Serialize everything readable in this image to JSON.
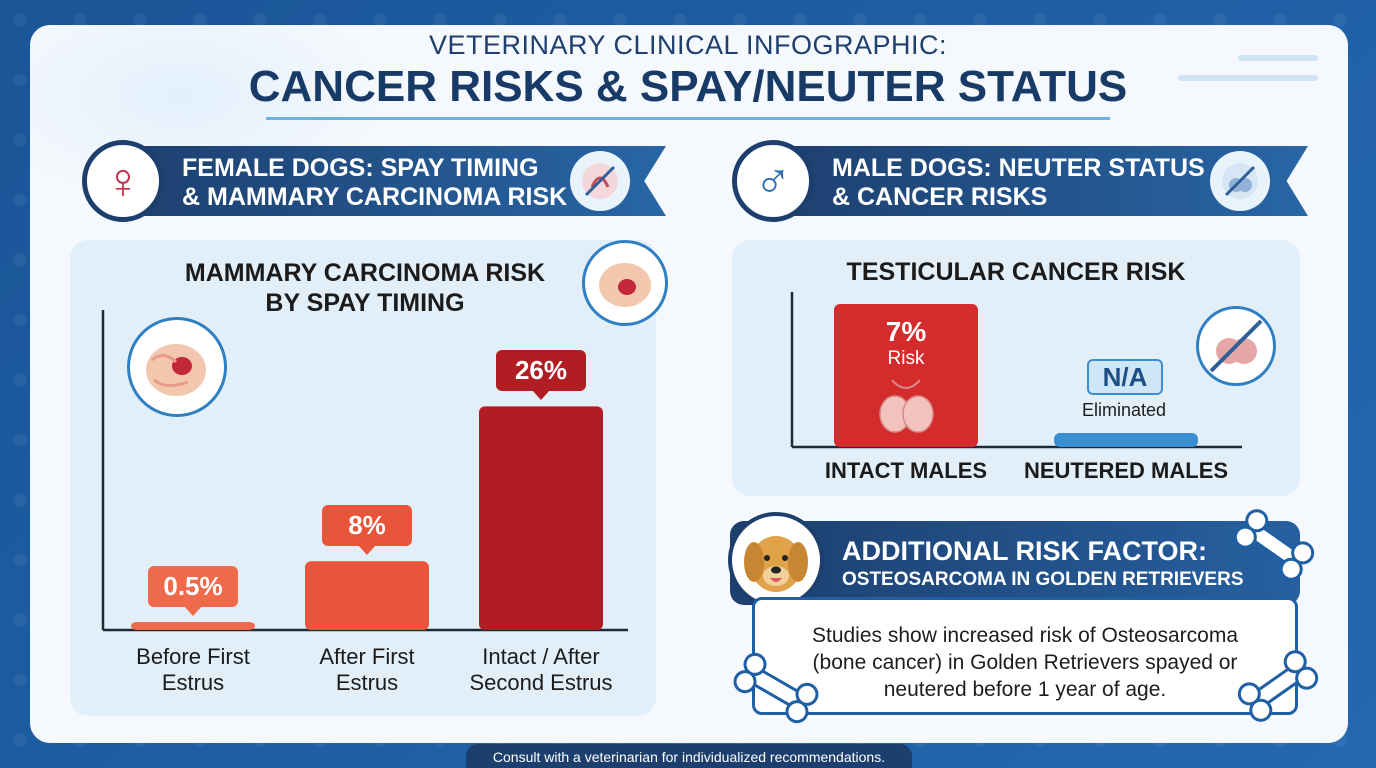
{
  "header": {
    "pre_title": "VETERINARY CLINICAL INFOGRAPHIC:",
    "title": "CANCER RISKS & SPAY/NEUTER STATUS"
  },
  "female_section": {
    "banner_line1": "FEMALE DOGS: SPAY TIMING",
    "banner_line2": "& MAMMARY CARCINOMA RISK",
    "icon": "female-symbol-icon"
  },
  "male_section": {
    "banner_line1": "MALE DOGS: NEUTER STATUS",
    "banner_line2": "& CANCER RISKS",
    "icon": "male-symbol-icon"
  },
  "chart_data": [
    {
      "type": "bar",
      "title_line1": "MAMMARY CARCINOMA RISK",
      "title_line2": "BY SPAY TIMING",
      "categories": [
        {
          "line1": "Before First",
          "line2": "Estrus"
        },
        {
          "line1": "After First",
          "line2": "Estrus"
        },
        {
          "line1": "Intact / After",
          "line2": "Second Estrus"
        }
      ],
      "values": [
        0.5,
        8,
        26
      ],
      "data_labels": [
        "0.5%",
        "8%",
        "26%"
      ],
      "ylim": [
        0,
        30
      ],
      "colors": [
        "#ee6a4a",
        "#e8553b",
        "#b01e24"
      ],
      "label_colors": [
        "#ee6a4a",
        "#e8553b",
        "#b01e24"
      ]
    },
    {
      "type": "bar",
      "title": "TESTICULAR CANCER RISK",
      "categories": [
        "INTACT MALES",
        "NEUTERED MALES"
      ],
      "values": [
        7,
        0
      ],
      "data_labels": [
        "7%",
        "N/A"
      ],
      "sub_labels": [
        "Risk",
        "Eliminated"
      ],
      "ylim": [
        0,
        7
      ],
      "colors": [
        "#d42c2c",
        "#3b8fd1"
      ]
    }
  ],
  "additional": {
    "header_line1": "ADDITIONAL RISK FACTOR:",
    "header_line2": "OSTEOSARCOMA IN GOLDEN RETRIEVERS",
    "body_line1": "Studies show increased risk of Osteosarcoma",
    "body_line2": "(bone cancer) in Golden Retrievers spayed or",
    "body_line3": "neutered before 1 year of age."
  },
  "footer": {
    "text": "Consult with a veterinarian for individualized recommendations."
  }
}
